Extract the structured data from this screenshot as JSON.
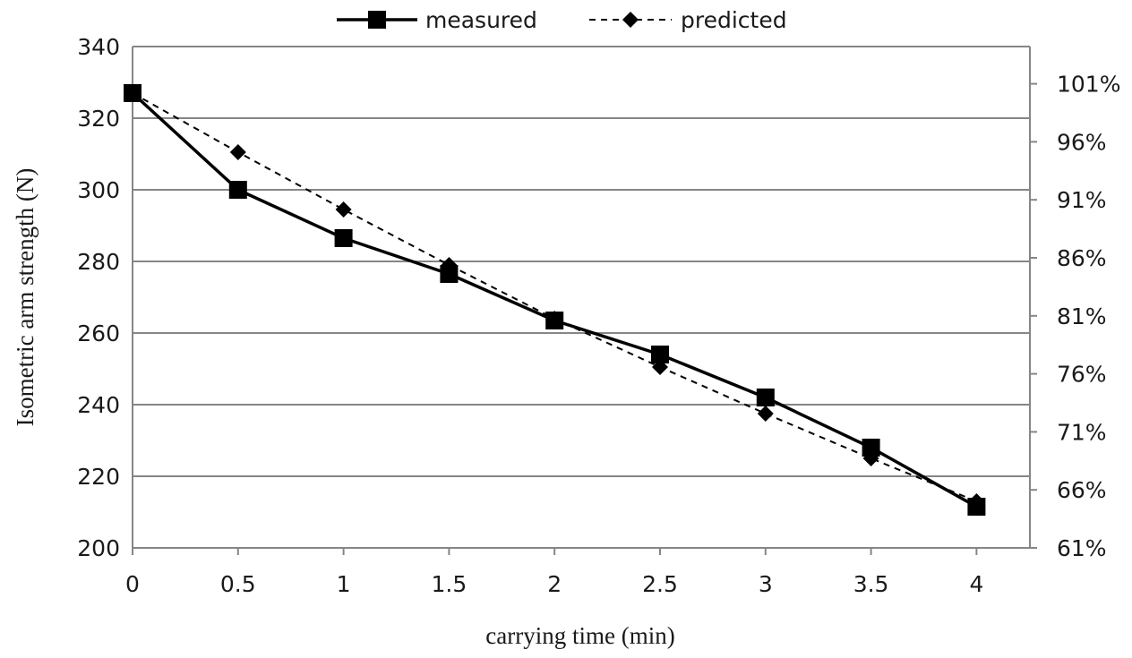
{
  "chart_data": {
    "type": "line",
    "xlabel": "carrying time (min)",
    "ylabel": "Isometric  arm  strength (N)",
    "x": [
      0,
      0.5,
      1,
      1.5,
      2,
      2.5,
      3,
      3.5,
      4
    ],
    "x_tick_labels": [
      "0",
      "0.5",
      "1",
      "1.5",
      "2",
      "2.5",
      "3",
      "3.5",
      "4"
    ],
    "ylim": [
      200,
      340
    ],
    "y_ticks": [
      200,
      220,
      240,
      260,
      280,
      300,
      320,
      340
    ],
    "y_tick_labels": [
      "200",
      "220",
      "240",
      "260",
      "280",
      "300",
      "320",
      "340"
    ],
    "y2_tick_labels": [
      "61%",
      "66%",
      "71%",
      "76%",
      "81%",
      "86%",
      "91%",
      "96%",
      "101%"
    ],
    "y2_ticks_in_y_units": [
      200,
      216.2,
      232.4,
      248.6,
      264.8,
      281,
      297.2,
      313.4,
      329.6
    ],
    "grid": "horizontal",
    "legend_position": "top",
    "series": [
      {
        "name": "measured",
        "values": [
          327,
          300,
          286.5,
          276.5,
          263.5,
          254,
          242,
          228,
          211.5
        ],
        "color": "#000000",
        "line_style": "solid",
        "marker": "square"
      },
      {
        "name": "predicted",
        "values": [
          327,
          310.5,
          294.5,
          279,
          264,
          250.5,
          237.5,
          225,
          213
        ],
        "color": "#000000",
        "line_style": "dashed",
        "marker": "diamond"
      }
    ]
  }
}
